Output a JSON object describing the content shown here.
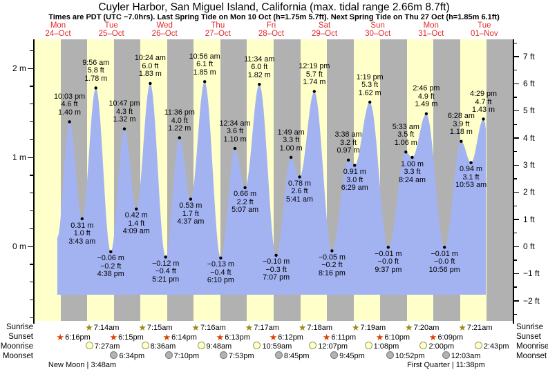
{
  "title": "Cuyler Harbor, San Miguel Island, California (max. tidal range 2.66m 8.7ft)",
  "subtitle": "Times are PDT (UTC −7.0hrs). Last Spring Tide on Mon 10 Oct (h=1.75m 5.7ft). Next Spring Tide on Thu 27 Oct (h=1.85m 6.1ft)",
  "colors": {
    "background": "#ffffff",
    "day_band": "#ffffc9",
    "night_band": "#b1b1b1",
    "tide_fill": "#a3b3f2",
    "text": "#000000",
    "date_label": "#e02b2b",
    "sunrise_star": "#9c8b14",
    "sunset_star": "#d94408",
    "moonrise_circle_fill": "#ffffcc",
    "moonrise_circle_border": "#98985f",
    "moonset_circle_fill": "#b3b3b3",
    "moonset_circle_border": "#777777"
  },
  "days": [
    {
      "weekday": "Mon",
      "date": "24–Oct"
    },
    {
      "weekday": "Tue",
      "date": "25–Oct"
    },
    {
      "weekday": "Wed",
      "date": "26–Oct"
    },
    {
      "weekday": "Thu",
      "date": "27–Oct"
    },
    {
      "weekday": "Fri",
      "date": "28–Oct"
    },
    {
      "weekday": "Sat",
      "date": "29–Oct"
    },
    {
      "weekday": "Sun",
      "date": "30–Oct"
    },
    {
      "weekday": "Mon",
      "date": "31–Oct"
    },
    {
      "weekday": "Tue",
      "date": "01–Nov"
    }
  ],
  "y_axis": {
    "left_unit": "m",
    "left_labels": [
      "2 m",
      "1 m",
      "0 m"
    ],
    "left_values_m": [
      2,
      1,
      0
    ],
    "right_unit": "ft",
    "right_labels": [
      "7 ft",
      "6 ft",
      "5 ft",
      "4 ft",
      "3 ft",
      "2 ft",
      "1 ft",
      "0 ft",
      "−1 ft",
      "−2 ft"
    ],
    "right_values_ft": [
      7,
      6,
      5,
      4,
      3,
      2,
      1,
      0,
      -1,
      -2
    ]
  },
  "chart_data": {
    "type": "area",
    "title": "Tide height curve, Mon 24-Oct to Tue 01-Nov",
    "x_axis_note": "alternating yellow day / gray night bands, one pair per day",
    "ylim_m": [
      -0.8,
      2.3
    ],
    "ylim_ft": [
      -2.5,
      7.5
    ],
    "tides": [
      {
        "kind": "high",
        "day": "Mon 24-Oct",
        "time": "10:03 pm",
        "ft": "4.6 ft",
        "m": "1.40 m",
        "height_m": 1.4,
        "t_days": 0.91875
      },
      {
        "kind": "low",
        "day": "Tue 25-Oct",
        "time": "3:43 am",
        "ft": "1.0 ft",
        "m": "0.31 m",
        "height_m": 0.31,
        "t_days": 1.154861
      },
      {
        "kind": "high",
        "day": "Tue 25-Oct",
        "time": "9:56 am",
        "ft": "5.8 ft",
        "m": "1.78 m",
        "height_m": 1.78,
        "t_days": 1.413889
      },
      {
        "kind": "low",
        "day": "Tue 25-Oct",
        "time": "4:38 pm",
        "ft": "−0.2 ft",
        "m": "−0.06 m",
        "height_m": -0.06,
        "t_days": 1.693056
      },
      {
        "kind": "high",
        "day": "Tue 25-Oct",
        "time": "10:47 pm",
        "ft": "4.3 ft",
        "m": "1.32 m",
        "height_m": 1.32,
        "t_days": 1.949306
      },
      {
        "kind": "low",
        "day": "Wed 26-Oct",
        "time": "4:09 am",
        "ft": "1.4 ft",
        "m": "0.42 m",
        "height_m": 0.42,
        "t_days": 2.172917
      },
      {
        "kind": "high",
        "day": "Wed 26-Oct",
        "time": "10:24 am",
        "ft": "6.0 ft",
        "m": "1.83 m",
        "height_m": 1.83,
        "t_days": 2.433333
      },
      {
        "kind": "low",
        "day": "Wed 26-Oct",
        "time": "5:21 pm",
        "ft": "−0.4 ft",
        "m": "−0.12 m",
        "height_m": -0.12,
        "t_days": 2.722917
      },
      {
        "kind": "high",
        "day": "Wed 26-Oct",
        "time": "11:36 pm",
        "ft": "4.0 ft",
        "m": "1.22 m",
        "height_m": 1.22,
        "t_days": 2.983333
      },
      {
        "kind": "low",
        "day": "Thu 27-Oct",
        "time": "4:37 am",
        "ft": "1.7 ft",
        "m": "0.53 m",
        "height_m": 0.53,
        "t_days": 3.192361
      },
      {
        "kind": "high",
        "day": "Thu 27-Oct",
        "time": "10:56 am",
        "ft": "6.1 ft",
        "m": "1.85 m",
        "height_m": 1.85,
        "t_days": 3.455556
      },
      {
        "kind": "low",
        "day": "Thu 27-Oct",
        "time": "6:10 pm",
        "ft": "−0.4 ft",
        "m": "−0.13 m",
        "height_m": -0.13,
        "t_days": 3.756944
      },
      {
        "kind": "high",
        "day": "Fri 28-Oct",
        "time": "12:34 am",
        "ft": "3.6 ft",
        "m": "1.10 m",
        "height_m": 1.1,
        "t_days": 4.023611
      },
      {
        "kind": "low",
        "day": "Fri 28-Oct",
        "time": "5:07 am",
        "ft": "2.2 ft",
        "m": "0.66 m",
        "height_m": 0.66,
        "t_days": 4.213194
      },
      {
        "kind": "high",
        "day": "Fri 28-Oct",
        "time": "11:34 am",
        "ft": "6.0 ft",
        "m": "1.82 m",
        "height_m": 1.82,
        "t_days": 4.481944
      },
      {
        "kind": "low",
        "day": "Fri 28-Oct",
        "time": "7:07 pm",
        "ft": "−0.3 ft",
        "m": "−0.10 m",
        "height_m": -0.1,
        "t_days": 4.796528
      },
      {
        "kind": "high",
        "day": "Sat 29-Oct",
        "time": "1:49 am",
        "ft": "3.3 ft",
        "m": "1.00 m",
        "height_m": 1.0,
        "t_days": 5.075694
      },
      {
        "kind": "low",
        "day": "Sat 29-Oct",
        "time": "5:41 am",
        "ft": "2.6 ft",
        "m": "0.78 m",
        "height_m": 0.78,
        "t_days": 5.236806
      },
      {
        "kind": "high",
        "day": "Sat 29-Oct",
        "time": "12:19 pm",
        "ft": "5.7 ft",
        "m": "1.74 m",
        "height_m": 1.74,
        "t_days": 5.513194
      },
      {
        "kind": "low",
        "day": "Sat 29-Oct",
        "time": "8:16 pm",
        "ft": "−0.2 ft",
        "m": "−0.05 m",
        "height_m": -0.05,
        "t_days": 5.844444
      },
      {
        "kind": "high",
        "day": "Sun 30-Oct",
        "time": "3:38 am",
        "ft": "3.2 ft",
        "m": "0.97 m",
        "height_m": 0.97,
        "t_days": 6.151389
      },
      {
        "kind": "low",
        "day": "Sun 30-Oct",
        "time": "6:29 am",
        "ft": "3.0 ft",
        "m": "0.91 m",
        "height_m": 0.91,
        "t_days": 6.270139
      },
      {
        "kind": "high",
        "day": "Sun 30-Oct",
        "time": "1:19 pm",
        "ft": "5.3 ft",
        "m": "1.62 m",
        "height_m": 1.62,
        "t_days": 6.554861
      },
      {
        "kind": "low",
        "day": "Sun 30-Oct",
        "time": "9:37 pm",
        "ft": "−0.0 ft",
        "m": "−0.01 m",
        "height_m": -0.01,
        "t_days": 6.900694
      },
      {
        "kind": "high",
        "day": "Mon 31-Oct",
        "time": "5:33 am",
        "ft": "3.5 ft",
        "m": "1.06 m",
        "height_m": 1.06,
        "t_days": 7.23125
      },
      {
        "kind": "low",
        "day": "Mon 31-Oct",
        "time": "8:24 am",
        "ft": "3.3 ft",
        "m": "1.00 m",
        "height_m": 1.0,
        "t_days": 7.35
      },
      {
        "kind": "high",
        "day": "Mon 31-Oct",
        "time": "2:46 pm",
        "ft": "4.9 ft",
        "m": "1.49 m",
        "height_m": 1.49,
        "t_days": 7.615278
      },
      {
        "kind": "low",
        "day": "Mon 31-Oct",
        "time": "10:56 pm",
        "ft": "−0.0 ft",
        "m": "−0.01 m",
        "height_m": -0.01,
        "t_days": 7.955556
      },
      {
        "kind": "high",
        "day": "Tue 01-Nov",
        "time": "6:28 am",
        "ft": "3.9 ft",
        "m": "1.18 m",
        "height_m": 1.18,
        "t_days": 8.269444
      },
      {
        "kind": "low",
        "day": "Tue 01-Nov",
        "time": "10:53 am",
        "ft": "3.1 ft",
        "m": "0.94 m",
        "height_m": 0.94,
        "t_days": 8.453472
      },
      {
        "kind": "high",
        "day": "Tue 01-Nov",
        "time": "4:29 pm",
        "ft": "4.7 ft",
        "m": "1.43 m",
        "height_m": 1.43,
        "t_days": 8.686806
      }
    ]
  },
  "almanac": {
    "left_labels": [
      "Sunrise",
      "Sunset",
      "Moonrise",
      "Moonset"
    ],
    "right_labels": [
      "Sunrise",
      "Sunset",
      "Moonrise",
      "Moonset"
    ],
    "sunrise": [
      {
        "time": "7:14am",
        "t_days": 1.301389
      },
      {
        "time": "7:15am",
        "t_days": 2.302083
      },
      {
        "time": "7:16am",
        "t_days": 3.302778
      },
      {
        "time": "7:17am",
        "t_days": 4.303472
      },
      {
        "time": "7:18am",
        "t_days": 5.304167
      },
      {
        "time": "7:19am",
        "t_days": 6.304861
      },
      {
        "time": "7:20am",
        "t_days": 7.305556
      },
      {
        "time": "7:21am",
        "t_days": 8.30625
      }
    ],
    "sunset": [
      {
        "time": "6:16pm",
        "t_days": 0.761111
      },
      {
        "time": "6:15pm",
        "t_days": 1.760417
      },
      {
        "time": "6:14pm",
        "t_days": 2.759722
      },
      {
        "time": "6:13pm",
        "t_days": 3.759028
      },
      {
        "time": "6:12pm",
        "t_days": 4.758333
      },
      {
        "time": "6:11pm",
        "t_days": 5.757639
      },
      {
        "time": "6:10pm",
        "t_days": 6.756944
      },
      {
        "time": "6:09pm",
        "t_days": 7.75625
      }
    ],
    "moonrise": [
      {
        "time": "7:27am",
        "t_days": 1.310417
      },
      {
        "time": "8:36am",
        "t_days": 2.358333
      },
      {
        "time": "9:48am",
        "t_days": 3.408333
      },
      {
        "time": "10:59am",
        "t_days": 4.457639
      },
      {
        "time": "12:07pm",
        "t_days": 5.504861
      },
      {
        "time": "1:08pm",
        "t_days": 6.547222
      },
      {
        "time": "2:00pm",
        "t_days": 7.583333
      },
      {
        "time": "2:43pm",
        "t_days": 8.613194
      }
    ],
    "moonset": [
      {
        "time": "6:34pm",
        "t_days": 1.773611
      },
      {
        "time": "7:10pm",
        "t_days": 2.798611
      },
      {
        "time": "7:53pm",
        "t_days": 3.828472
      },
      {
        "time": "8:45pm",
        "t_days": 4.864583
      },
      {
        "time": "9:45pm",
        "t_days": 5.90625
      },
      {
        "time": "10:52pm",
        "t_days": 6.952778
      },
      {
        "time": "12:03am",
        "t_days": 8.002083
      }
    ],
    "phases": [
      {
        "name": "New Moon",
        "time": "3:48am",
        "t_days": 1.158333
      },
      {
        "name": "First Quarter",
        "time": "11:38pm",
        "t_days": 7.984722
      }
    ]
  }
}
